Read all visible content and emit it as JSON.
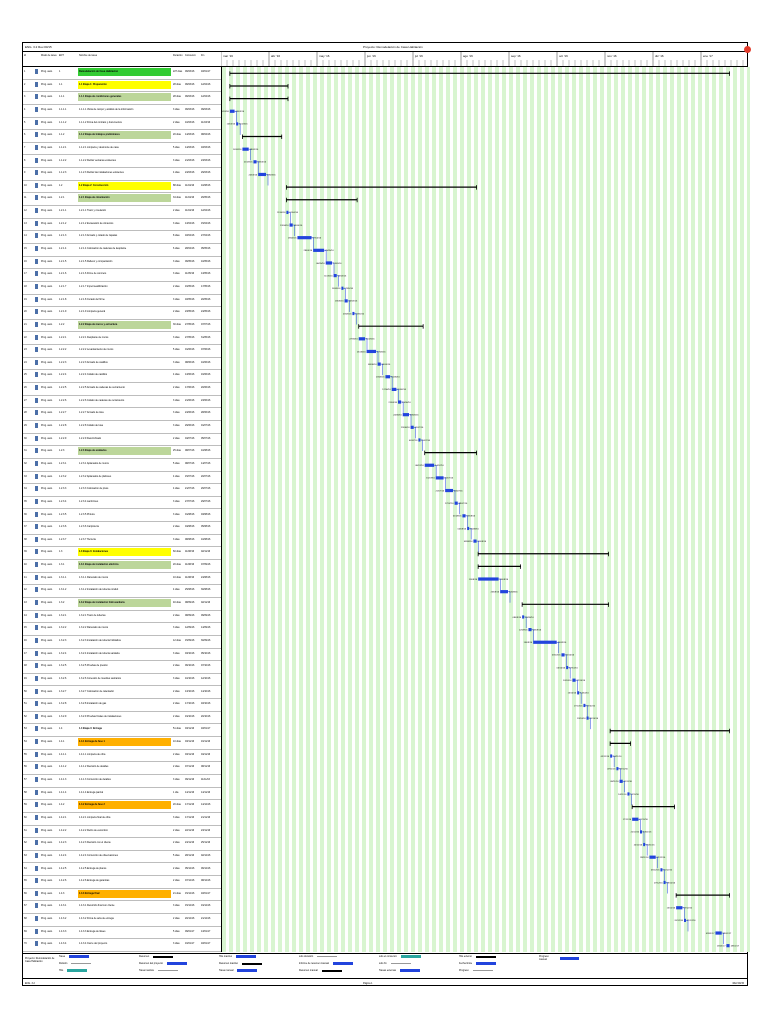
{
  "header": {
    "doc_id": "ENG. 3.2 Rev.00/15",
    "title": "Proyecto: Remodelación de Casa Habitación"
  },
  "columns": {
    "id": "Id",
    "mode": "Modo de tarea",
    "wbs": "EDT",
    "name": "Nombre de tarea",
    "duration": "Duración",
    "start": "Comienzo",
    "end": "Fin"
  },
  "tasks": [
    {
      "id": "1",
      "mode": "Prog. auto.",
      "wbs": "1",
      "name": "Remodelación de Casa Habitación",
      "dur": "227 días",
      "start": "06/03/16",
      "end": "18/01/17",
      "style": "green"
    },
    {
      "id": "2",
      "mode": "Prog. auto.",
      "wbs": "1.1",
      "name": "1.1 Etapa 1: Preparación",
      "dur": "28 días",
      "start": "06/03/16",
      "end": "12/04/16",
      "style": "yellow"
    },
    {
      "id": "3",
      "mode": "Prog. auto.",
      "wbs": "1.1.1",
      "name": "1.1.1 Etapa de condiciones generales",
      "dur": "28 días",
      "start": "06/03/16",
      "end": "12/04/16",
      "style": "olive"
    },
    {
      "id": "4",
      "mode": "Prog. auto.",
      "wbs": "1.1.1.1",
      "name": "1.1.1.1 Visita de campo y análisis de la información",
      "dur": "3 días",
      "start": "06/03/16",
      "end": "09/03/16",
      "style": ""
    },
    {
      "id": "5",
      "mode": "Prog. auto.",
      "wbs": "1.1.1.2",
      "name": "1.1.1.2 Firma del contrato y documentos",
      "dur": "2 días",
      "start": "10/03/16",
      "end": "11/03/16",
      "style": ""
    },
    {
      "id": "6",
      "mode": "Prog. auto.",
      "wbs": "1.1.2",
      "name": "1.1.2 Etapa de trabajos preliminares",
      "dur": "20 días",
      "start": "14/03/16",
      "end": "08/04/16",
      "style": "olive"
    },
    {
      "id": "7",
      "mode": "Prog. auto.",
      "wbs": "1.1.2.1",
      "name": "1.1.2.1 Limpieza y desmonte de casa",
      "dur": "5 días",
      "start": "14/03/16",
      "end": "18/03/16",
      "style": ""
    },
    {
      "id": "8",
      "mode": "Prog. auto.",
      "wbs": "1.1.2.2",
      "name": "1.1.2.2 Retirar ventanas existentes",
      "dur": "3 días",
      "start": "21/03/16",
      "end": "23/03/16",
      "style": ""
    },
    {
      "id": "9",
      "mode": "Prog. auto.",
      "wbs": "1.1.2.3",
      "name": "1.1.2.3 Retirar las instalaciones existentes",
      "dur": "4 días",
      "start": "24/03/16",
      "end": "29/03/16",
      "style": ""
    },
    {
      "id": "10",
      "mode": "Prog. auto.",
      "wbs": "1.2",
      "name": "1.2 Etapa 2: Construcción",
      "dur": "88 días",
      "start": "11/04/16",
      "end": "10/08/16",
      "style": "yellow"
    },
    {
      "id": "11",
      "mode": "Prog. auto.",
      "wbs": "1.2.1",
      "name": "1.2.1 Etapa de cimentación",
      "dur": "34 días",
      "start": "11/04/16",
      "end": "26/05/16",
      "style": "olive"
    },
    {
      "id": "12",
      "mode": "Prog. auto.",
      "wbs": "1.2.1.1",
      "name": "1.2.1.1 Trazo y nivelación",
      "dur": "2 días",
      "start": "11/04/16",
      "end": "12/04/16",
      "style": ""
    },
    {
      "id": "13",
      "mode": "Prog. auto.",
      "wbs": "1.2.1.2",
      "name": "1.2.1.2 Excavación de cimientos",
      "dur": "3 días",
      "start": "13/04/16",
      "end": "15/04/16",
      "style": ""
    },
    {
      "id": "14",
      "mode": "Prog. auto.",
      "wbs": "1.2.1.3",
      "name": "1.2.1.3 Armado y colado de zapatas",
      "dur": "8 días",
      "start": "18/04/16",
      "end": "27/04/16",
      "style": ""
    },
    {
      "id": "15",
      "mode": "Prog. auto.",
      "wbs": "1.2.1.4",
      "name": "1.2.1.4 Colocación de cadenas de desplante",
      "dur": "6 días",
      "start": "28/04/16",
      "end": "05/05/16",
      "style": ""
    },
    {
      "id": "16",
      "mode": "Prog. auto.",
      "wbs": "1.2.1.5",
      "name": "1.2.1.5 Relleno y compactación",
      "dur": "3 días",
      "start": "06/05/16",
      "end": "10/05/16",
      "style": ""
    },
    {
      "id": "17",
      "mode": "Prog. auto.",
      "wbs": "1.2.1.6",
      "name": "1.2.1.6 Firme de concreto",
      "dur": "3 días",
      "start": "11/05/16",
      "end": "13/05/16",
      "style": ""
    },
    {
      "id": "18",
      "mode": "Prog. auto.",
      "wbs": "1.2.1.7",
      "name": "1.2.1.7 Impermeabilización",
      "dur": "2 días",
      "start": "16/05/16",
      "end": "17/05/16",
      "style": ""
    },
    {
      "id": "19",
      "mode": "Prog. auto.",
      "wbs": "1.2.1.8",
      "name": "1.2.1.8 Curado del firme",
      "dur": "3 días",
      "start": "18/05/16",
      "end": "20/05/16",
      "style": ""
    },
    {
      "id": "20",
      "mode": "Prog. auto.",
      "wbs": "1.2.1.9",
      "name": "1.2.1.9 Limpieza general",
      "dur": "2 días",
      "start": "23/05/16",
      "end": "24/05/16",
      "style": ""
    },
    {
      "id": "21",
      "mode": "Prog. auto.",
      "wbs": "1.2.2",
      "name": "1.2.2 Etapa de muros y estructura",
      "dur": "30 días",
      "start": "27/05/16",
      "end": "07/07/16",
      "style": "olive"
    },
    {
      "id": "22",
      "mode": "Prog. auto.",
      "wbs": "1.2.2.1",
      "name": "1.2.2.1 Desplante de muros",
      "dur": "3 días",
      "start": "27/05/16",
      "end": "31/05/16",
      "style": ""
    },
    {
      "id": "23",
      "mode": "Prog. auto.",
      "wbs": "1.2.2.2",
      "name": "1.2.2.2 Levantamiento de muros",
      "dur": "5 días",
      "start": "01/06/16",
      "end": "07/06/16",
      "style": ""
    },
    {
      "id": "24",
      "mode": "Prog. auto.",
      "wbs": "1.2.2.3",
      "name": "1.2.2.3 Armado de castillos",
      "dur": "3 días",
      "start": "08/06/16",
      "end": "10/06/16",
      "style": ""
    },
    {
      "id": "25",
      "mode": "Prog. auto.",
      "wbs": "1.2.2.4",
      "name": "1.2.2.4 Colado de castillos",
      "dur": "4 días",
      "start": "13/06/16",
      "end": "16/06/16",
      "style": ""
    },
    {
      "id": "26",
      "mode": "Prog. auto.",
      "wbs": "1.2.2.5",
      "name": "1.2.2.5 Armado de cadenas de cerramiento",
      "dur": "2 días",
      "start": "17/06/16",
      "end": "20/06/16",
      "style": ""
    },
    {
      "id": "27",
      "mode": "Prog. auto.",
      "wbs": "1.2.2.6",
      "name": "1.2.2.6 Colado de cadenas de cerramiento",
      "dur": "3 días",
      "start": "21/06/16",
      "end": "23/06/16",
      "style": ""
    },
    {
      "id": "28",
      "mode": "Prog. auto.",
      "wbs": "1.2.2.7",
      "name": "1.2.2.7 Armado de losa",
      "dur": "3 días",
      "start": "24/06/16",
      "end": "28/06/16",
      "style": ""
    },
    {
      "id": "29",
      "mode": "Prog. auto.",
      "wbs": "1.2.2.8",
      "name": "1.2.2.8 Colado de losa",
      "dur": "3 días",
      "start": "29/06/16",
      "end": "01/07/16",
      "style": ""
    },
    {
      "id": "30",
      "mode": "Prog. auto.",
      "wbs": "1.2.2.9",
      "name": "1.2.2.9 Descimbrado",
      "dur": "2 días",
      "start": "04/07/16",
      "end": "05/07/16",
      "style": ""
    },
    {
      "id": "31",
      "mode": "Prog. auto.",
      "wbs": "1.2.3",
      "name": "1.2.3 Etapa de acabados",
      "dur": "25 días",
      "start": "08/07/16",
      "end": "10/08/16",
      "style": "olive"
    },
    {
      "id": "32",
      "mode": "Prog. auto.",
      "wbs": "1.2.3.1",
      "name": "1.2.3.1 Aplanados de muros",
      "dur": "5 días",
      "start": "08/07/16",
      "end": "14/07/16",
      "style": ""
    },
    {
      "id": "33",
      "mode": "Prog. auto.",
      "wbs": "1.2.3.2",
      "name": "1.2.3.2 Aplanados de plafones",
      "dur": "4 días",
      "start": "15/07/16",
      "end": "20/07/16",
      "style": ""
    },
    {
      "id": "34",
      "mode": "Prog. auto.",
      "wbs": "1.2.3.3",
      "name": "1.2.3.3 Colocación de pisos",
      "dur": "4 días",
      "start": "21/07/16",
      "end": "26/07/16",
      "style": ""
    },
    {
      "id": "35",
      "mode": "Prog. auto.",
      "wbs": "1.2.3.4",
      "name": "1.2.3.4 Lambrines",
      "dur": "3 días",
      "start": "27/07/16",
      "end": "29/07/16",
      "style": ""
    },
    {
      "id": "36",
      "mode": "Prog. auto.",
      "wbs": "1.2.3.5",
      "name": "1.2.3.5 Pintura",
      "dur": "3 días",
      "start": "01/08/16",
      "end": "03/08/16",
      "style": ""
    },
    {
      "id": "37",
      "mode": "Prog. auto.",
      "wbs": "1.2.3.6",
      "name": "1.2.3.6 Carpintería",
      "dur": "2 días",
      "start": "04/08/16",
      "end": "05/08/16",
      "style": ""
    },
    {
      "id": "38",
      "mode": "Prog. auto.",
      "wbs": "1.2.3.7",
      "name": "1.2.3.7 Herrería",
      "dur": "3 días",
      "start": "08/08/16",
      "end": "10/08/16",
      "style": ""
    },
    {
      "id": "39",
      "mode": "Prog. auto.",
      "wbs": "1.3",
      "name": "1.3 Etapa 3: Instalaciones",
      "dur": "60 días",
      "start": "11/08/16",
      "end": "02/11/16",
      "style": "yellow"
    },
    {
      "id": "40",
      "mode": "Prog. auto.",
      "wbs": "1.3.1",
      "name": "1.3.1 Etapa de instalación eléctrica",
      "dur": "20 días",
      "start": "11/08/16",
      "end": "07/09/16",
      "style": "olive"
    },
    {
      "id": "41",
      "mode": "Prog. auto.",
      "wbs": "1.3.1.1",
      "name": "1.3.1.1 Ranurado de muros",
      "dur": "10 días",
      "start": "11/08/16",
      "end": "24/08/16",
      "style": ""
    },
    {
      "id": "42",
      "mode": "Prog. auto.",
      "wbs": "1.3.1.2",
      "name": "1.3.1.2 Instalación de tubería conduit",
      "dur": "4 días",
      "start": "25/08/16",
      "end": "30/08/16",
      "style": ""
    },
    {
      "id": "43",
      "mode": "Prog. auto.",
      "wbs": "1.3.2",
      "name": "1.3.2 Etapa de instalación hidrosanitaria",
      "dur": "40 días",
      "start": "08/09/16",
      "end": "02/11/16",
      "style": "olive"
    },
    {
      "id": "44",
      "mode": "Prog. auto.",
      "wbs": "1.3.2.1",
      "name": "1.3.2.1 Trazo de tuberías",
      "dur": "2 días",
      "start": "08/09/16",
      "end": "09/09/16",
      "style": ""
    },
    {
      "id": "45",
      "mode": "Prog. auto.",
      "wbs": "1.3.2.2",
      "name": "1.3.2.2 Ranurado de muros",
      "dur": "3 días",
      "start": "12/09/16",
      "end": "14/09/16",
      "style": ""
    },
    {
      "id": "46",
      "mode": "Prog. auto.",
      "wbs": "1.3.2.3",
      "name": "1.3.2.3 Instalación de tubería hidráulica",
      "dur": "12 días",
      "start": "15/09/16",
      "end": "30/09/16",
      "style": ""
    },
    {
      "id": "47",
      "mode": "Prog. auto.",
      "wbs": "1.3.2.4",
      "name": "1.3.2.4 Instalación de tubería sanitaria",
      "dur": "3 días",
      "start": "03/10/16",
      "end": "05/10/16",
      "style": ""
    },
    {
      "id": "48",
      "mode": "Prog. auto.",
      "wbs": "1.3.2.5",
      "name": "1.3.2.5 Pruebas de presión",
      "dur": "2 días",
      "start": "06/10/16",
      "end": "07/10/16",
      "style": ""
    },
    {
      "id": "49",
      "mode": "Prog. auto.",
      "wbs": "1.3.2.6",
      "name": "1.3.2.6 Conexión de muebles sanitarios",
      "dur": "3 días",
      "start": "10/10/16",
      "end": "12/10/16",
      "style": ""
    },
    {
      "id": "50",
      "mode": "Prog. auto.",
      "wbs": "1.3.2.7",
      "name": "1.3.2.7 Colocación de calentador",
      "dur": "2 días",
      "start": "13/10/16",
      "end": "14/10/16",
      "style": ""
    },
    {
      "id": "51",
      "mode": "Prog. auto.",
      "wbs": "1.3.2.8",
      "name": "1.3.2.8 Instalación de gas",
      "dur": "2 días",
      "start": "17/10/16",
      "end": "18/10/16",
      "style": ""
    },
    {
      "id": "52",
      "mode": "Prog. auto.",
      "wbs": "1.3.2.9",
      "name": "1.3.2.9 Pruebas finales de instalaciones",
      "dur": "2 días",
      "start": "19/10/16",
      "end": "20/10/16",
      "style": ""
    },
    {
      "id": "53",
      "mode": "Prog. auto.",
      "wbs": "1.4",
      "name": "1.4 Etapa 4: Entrega",
      "dur": "51 días",
      "start": "03/11/16",
      "end": "18/01/17",
      "style": "sum"
    },
    {
      "id": "54",
      "mode": "Prog. auto.",
      "wbs": "1.4.1",
      "name": "1.4.1 Entrega de fase 1",
      "dur": "10 días",
      "start": "03/11/16",
      "end": "16/11/16",
      "style": "orange"
    },
    {
      "id": "55",
      "mode": "Prog. auto.",
      "wbs": "1.4.1.1",
      "name": "1.4.1.1 Limpieza de obra",
      "dur": "2 días",
      "start": "03/11/16",
      "end": "04/11/16",
      "style": ""
    },
    {
      "id": "56",
      "mode": "Prog. auto.",
      "wbs": "1.4.1.2",
      "name": "1.4.1.2 Revisión de detalles",
      "dur": "2 días",
      "start": "07/11/16",
      "end": "08/11/16",
      "style": ""
    },
    {
      "id": "57",
      "mode": "Prog. auto.",
      "wbs": "1.4.1.3",
      "name": "1.4.1.3 Corrección de detalles",
      "dur": "3 días",
      "start": "09/11/16",
      "end": "11/11/16",
      "style": ""
    },
    {
      "id": "58",
      "mode": "Prog. auto.",
      "wbs": "1.4.1.4",
      "name": "1.4.1.4 Entrega parcial",
      "dur": "1 día",
      "start": "14/11/16",
      "end": "14/11/16",
      "style": ""
    },
    {
      "id": "59",
      "mode": "Prog. auto.",
      "wbs": "1.4.2",
      "name": "1.4.2 Entrega de fase 2",
      "dur": "20 días",
      "start": "17/11/16",
      "end": "14/12/16",
      "style": "orange"
    },
    {
      "id": "60",
      "mode": "Prog. auto.",
      "wbs": "1.4.2.1",
      "name": "1.4.2.1 Limpieza final de obra",
      "dur": "3 días",
      "start": "17/11/16",
      "end": "21/11/16",
      "style": ""
    },
    {
      "id": "61",
      "mode": "Prog. auto.",
      "wbs": "1.4.2.2",
      "name": "1.4.2.2 Retiro de escombro",
      "dur": "2 días",
      "start": "22/11/16",
      "end": "23/11/16",
      "style": ""
    },
    {
      "id": "62",
      "mode": "Prog. auto.",
      "wbs": "1.4.2.3",
      "name": "1.4.2.3 Revisión con el cliente",
      "dur": "2 días",
      "start": "24/11/16",
      "end": "25/11/16",
      "style": ""
    },
    {
      "id": "63",
      "mode": "Prog. auto.",
      "wbs": "1.4.2.4",
      "name": "1.4.2.4 Corrección de observaciones",
      "dur": "5 días",
      "start": "28/11/16",
      "end": "02/12/16",
      "style": ""
    },
    {
      "id": "64",
      "mode": "Prog. auto.",
      "wbs": "1.4.2.5",
      "name": "1.4.2.5 Entrega de planos",
      "dur": "2 días",
      "start": "05/12/16",
      "end": "06/12/16",
      "style": ""
    },
    {
      "id": "65",
      "mode": "Prog. auto.",
      "wbs": "1.4.2.6",
      "name": "1.4.2.6 Entrega de garantías",
      "dur": "2 días",
      "start": "07/12/16",
      "end": "08/12/16",
      "style": ""
    },
    {
      "id": "66",
      "mode": "Prog. auto.",
      "wbs": "1.4.3",
      "name": "1.4.3 Entrega final",
      "dur": "21 días",
      "start": "15/12/16",
      "end": "18/01/17",
      "style": "orange"
    },
    {
      "id": "67",
      "mode": "Prog. auto.",
      "wbs": "1.4.3.1",
      "name": "1.4.3.1 Recorrido final con cliente",
      "dur": "3 días",
      "start": "15/12/16",
      "end": "19/12/16",
      "style": ""
    },
    {
      "id": "68",
      "mode": "Prog. auto.",
      "wbs": "1.4.3.2",
      "name": "1.4.3.2 Firma de acta de entrega",
      "dur": "2 días",
      "start": "20/12/16",
      "end": "21/12/16",
      "style": ""
    },
    {
      "id": "69",
      "mode": "Prog. auto.",
      "wbs": "1.4.3.3",
      "name": "1.4.3.3 Entrega de llaves",
      "dur": "5 días",
      "start": "09/01/17",
      "end": "13/01/17",
      "style": ""
    },
    {
      "id": "70",
      "mode": "Prog. auto.",
      "wbs": "1.4.3.4",
      "name": "1.4.3.4 Cierre del proyecto",
      "dur": "3 días",
      "start": "16/01/17",
      "end": "18/01/17",
      "style": ""
    }
  ],
  "timeline": {
    "months": [
      "mar '16",
      "abr '16",
      "may '16",
      "jun '16",
      "jul '16",
      "ago '16",
      "sep '16",
      "oct '16",
      "nov '16",
      "dic '16",
      "ene '17"
    ]
  },
  "footer": {
    "project": "Proyecto: Remodelación de Casa Habitación",
    "legend": [
      "Tarea",
      "División",
      "Hito",
      "Resumen",
      "Resumen del proyecto",
      "Tarea inactiva",
      "Hito inactivo",
      "Resumen inactivo",
      "Tarea manual",
      "solo duración",
      "Informe de resumen manual",
      "Resumen manual",
      "solo el comienzo",
      "solo fin",
      "Tareas externas",
      "Hito externo",
      "Fecha límite",
      "Progreso",
      "Progreso manual"
    ],
    "page": "Página 1",
    "left_code": "ENG. 3.2",
    "right_code": "REV.00/15"
  },
  "colors": {
    "bar": "#2244dd",
    "summary": "#000000",
    "grid": "#d8f5d0"
  }
}
